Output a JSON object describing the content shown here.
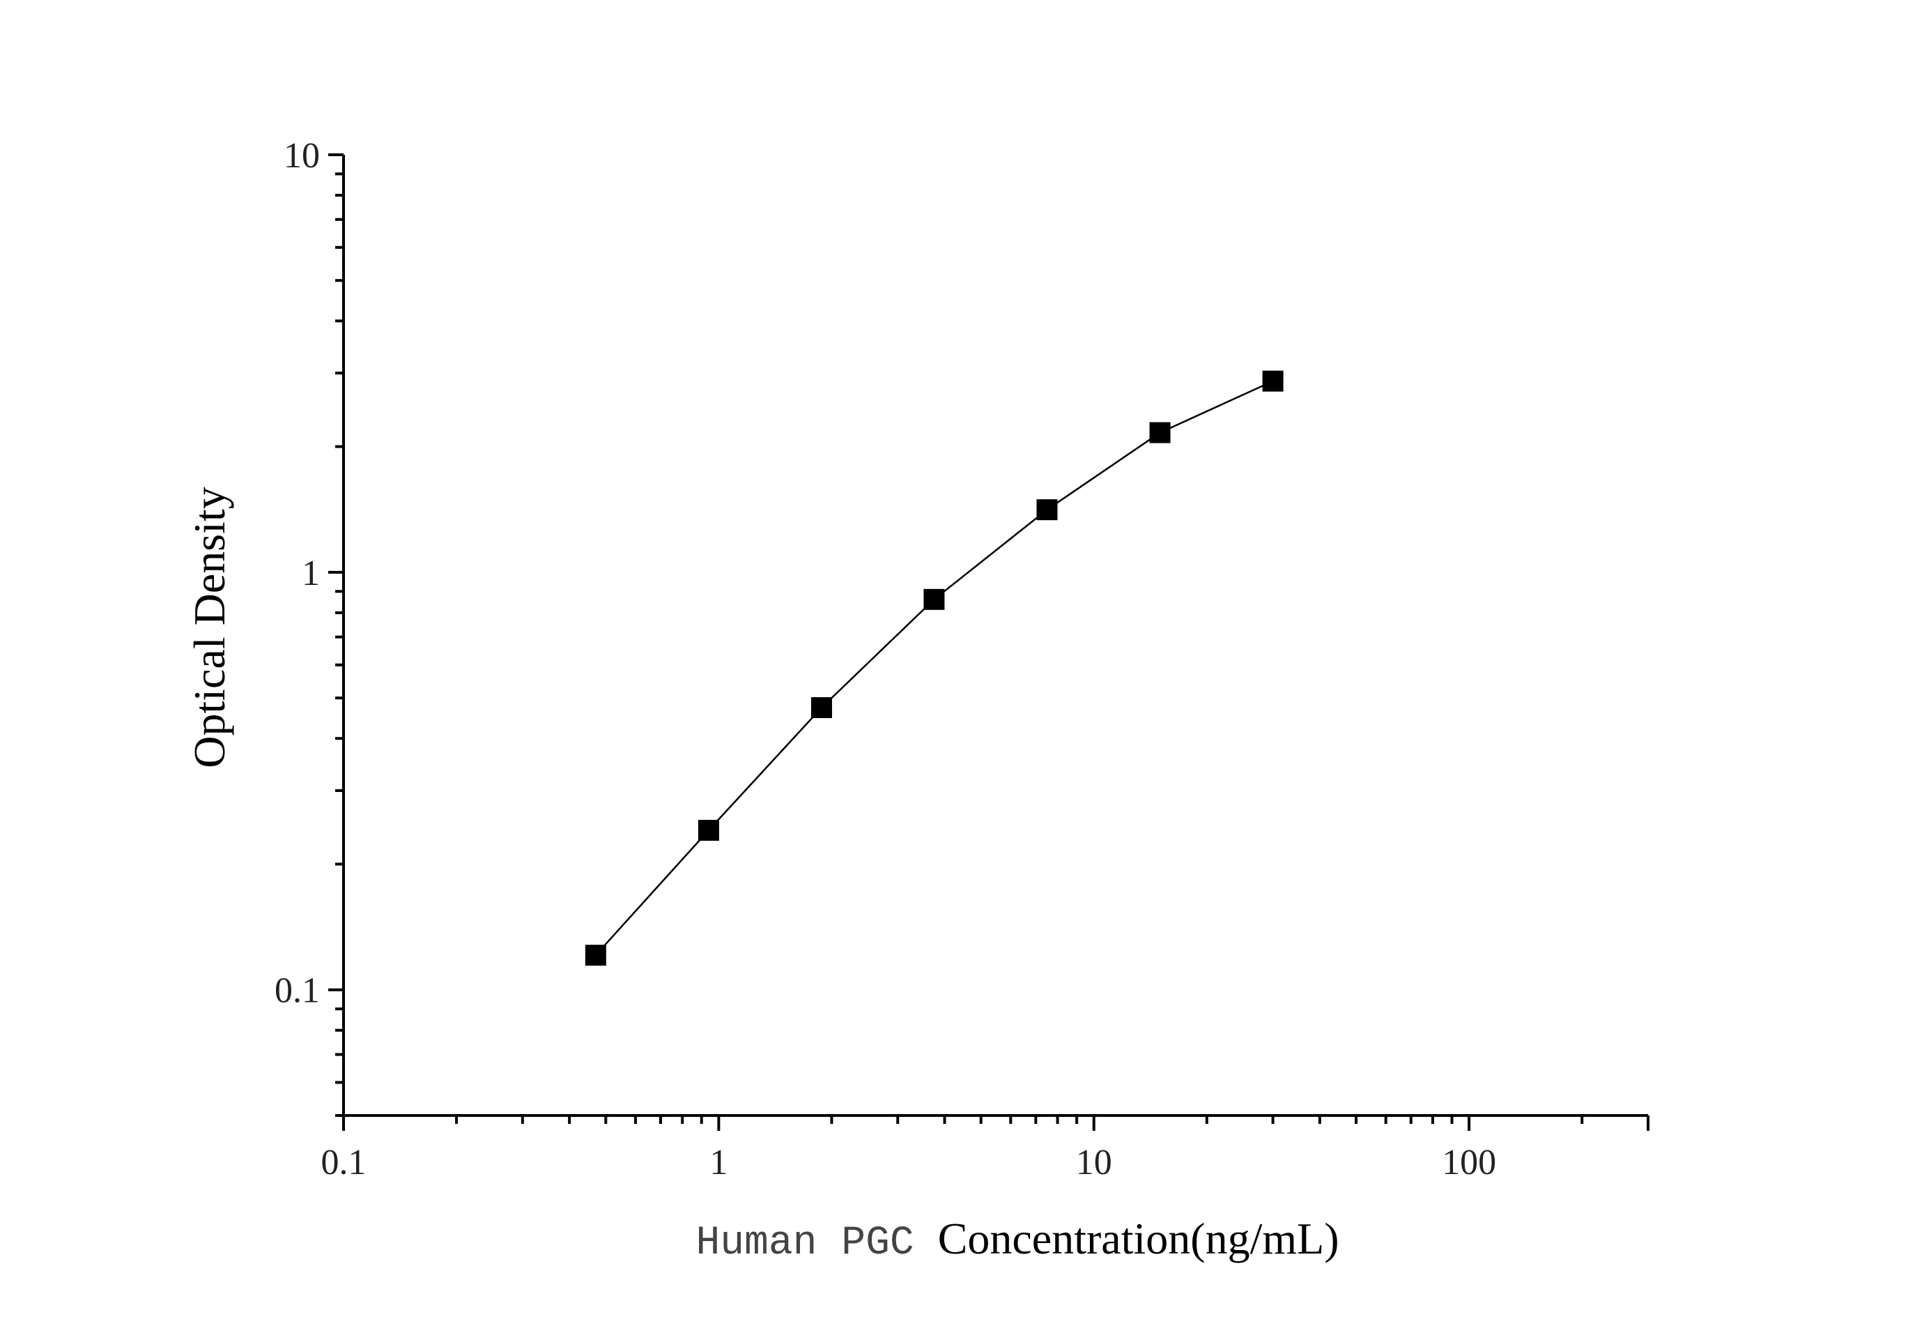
{
  "chart_data": {
    "type": "line",
    "title": "",
    "xlabel_prefix": "Human PGC",
    "xlabel_main": "Concentration(ng/mL)",
    "ylabel": "Optical Density",
    "x_scale": "log",
    "y_scale": "log",
    "xlim": [
      0.1,
      300
    ],
    "ylim": [
      0.05,
      10
    ],
    "x_ticks": [
      {
        "value": 0.1,
        "label": "0.1"
      },
      {
        "value": 1,
        "label": "1"
      },
      {
        "value": 10,
        "label": "10"
      },
      {
        "value": 100,
        "label": "100"
      }
    ],
    "y_ticks": [
      {
        "value": 0.1,
        "label": "0.1"
      },
      {
        "value": 1,
        "label": "1"
      },
      {
        "value": 10,
        "label": "10"
      }
    ],
    "grid": false,
    "legend": "none",
    "marker": "square",
    "color": "#000000",
    "series": [
      {
        "x": [
          0.47,
          0.94,
          1.88,
          3.75,
          7.5,
          15,
          30
        ],
        "y": [
          0.121,
          0.241,
          0.474,
          0.861,
          1.412,
          2.16,
          2.87
        ]
      }
    ]
  }
}
